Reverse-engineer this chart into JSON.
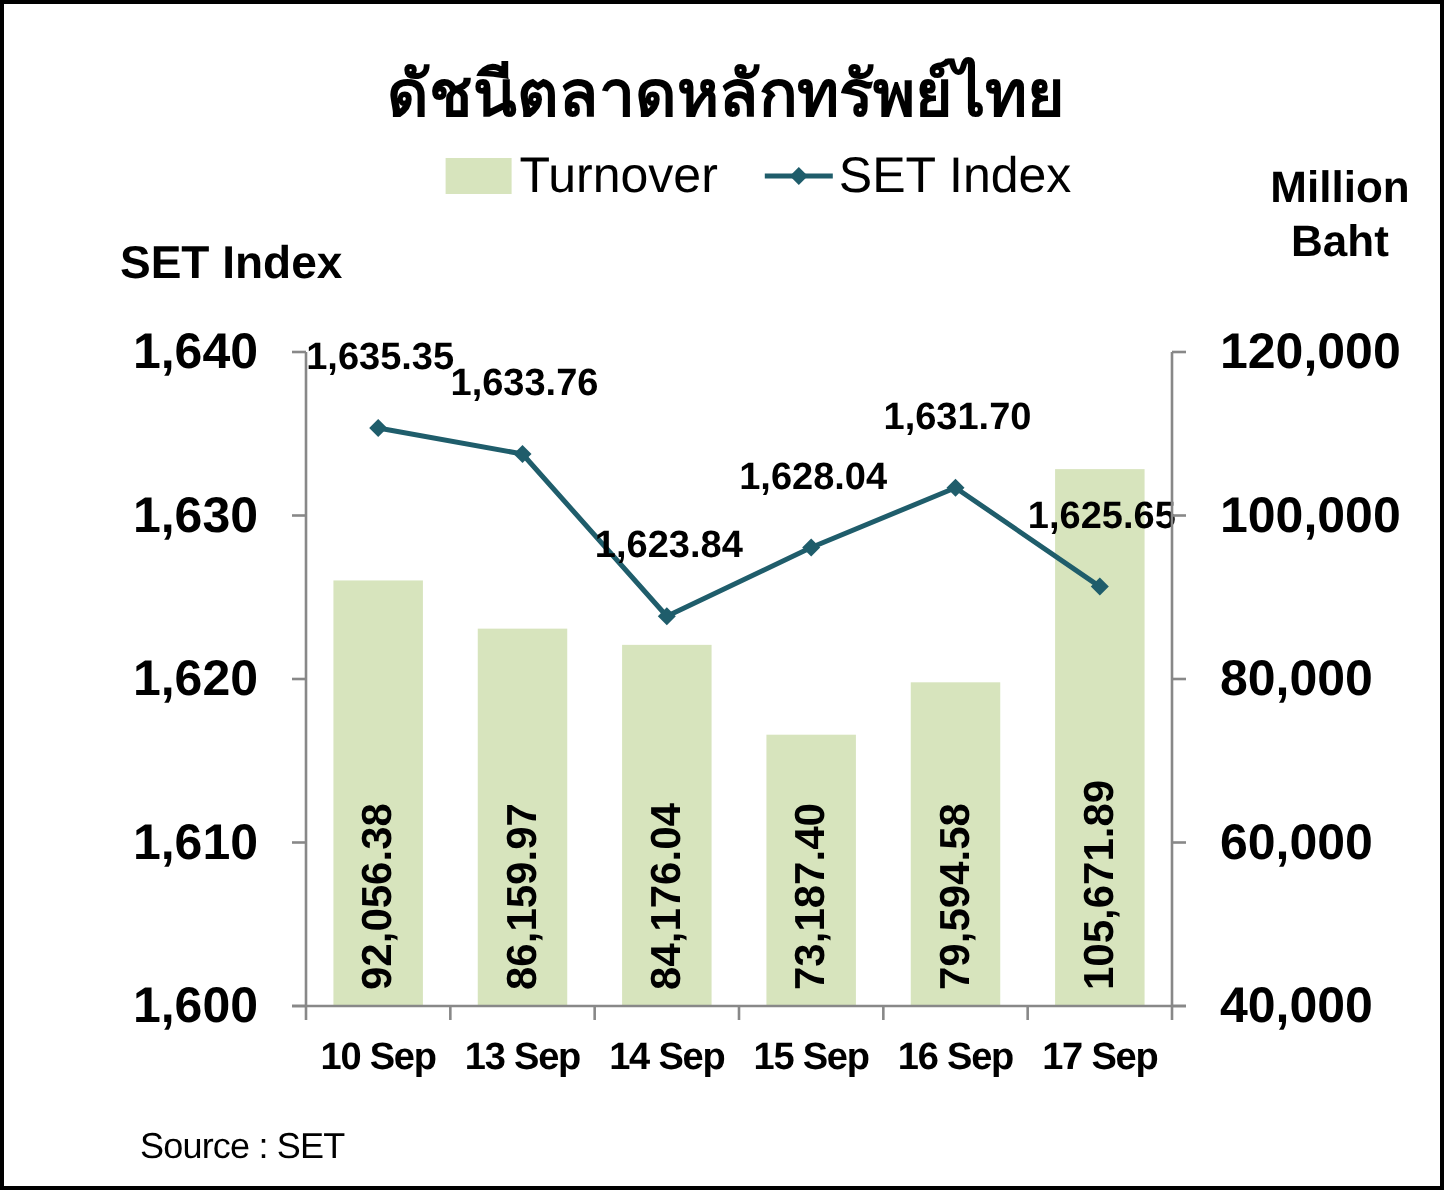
{
  "chart_data": {
    "type": "bar",
    "title": "ดัชนีตลาดหลักทรัพย์ไทย",
    "categories": [
      "10 Sep",
      "13 Sep",
      "14 Sep",
      "15 Sep",
      "16 Sep",
      "17 Sep"
    ],
    "series": [
      {
        "name": "Turnover",
        "axis": "y2",
        "color": "#d7e4bd",
        "values": [
          92056.38,
          86159.97,
          84176.04,
          73187.4,
          79594.58,
          105671.89
        ],
        "value_labels": [
          "92,056.38",
          "86,159.97",
          "84,176.04",
          "73,187.40",
          "79,594.58",
          "105,671.89"
        ]
      },
      {
        "name": "SET Index",
        "type": "line",
        "color": "#1f5d6b",
        "values": [
          1635.35,
          1633.76,
          1623.84,
          1628.04,
          1631.7,
          1625.65
        ],
        "value_labels": [
          "1,635.35",
          "1,633.76",
          "1,623.84",
          "1,628.04",
          "1,631.70",
          "1,625.65"
        ]
      }
    ],
    "ylabel": "SET Index",
    "y2label": "Million Baht",
    "ylim": [
      1600,
      1640
    ],
    "yticks": [
      {
        "value": 1600,
        "label": "1,600"
      },
      {
        "value": 1610,
        "label": "1,610"
      },
      {
        "value": 1620,
        "label": "1,620"
      },
      {
        "value": 1630,
        "label": "1,630"
      },
      {
        "value": 1640,
        "label": "1,640"
      }
    ],
    "y2lim": [
      40000,
      120000
    ],
    "y2ticks": [
      {
        "value": 40000,
        "label": "40,000"
      },
      {
        "value": 60000,
        "label": "60,000"
      },
      {
        "value": 80000,
        "label": "80,000"
      },
      {
        "value": 100000,
        "label": "100,000"
      },
      {
        "value": 120000,
        "label": "120,000"
      }
    ],
    "legend": "top",
    "marker": "diamond",
    "line_style": "solid",
    "annotations": [
      "Source : SET"
    ]
  }
}
